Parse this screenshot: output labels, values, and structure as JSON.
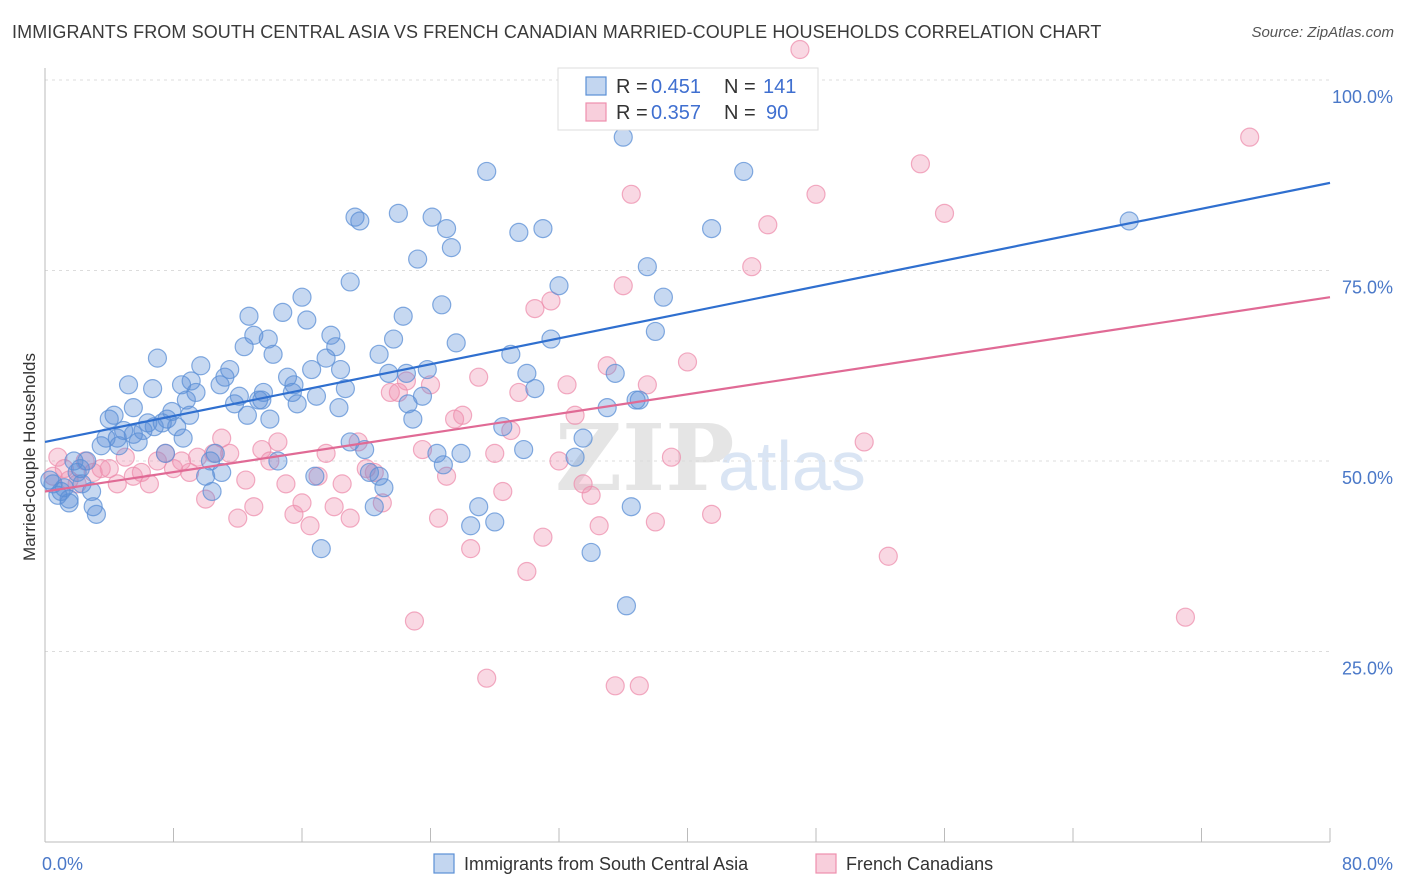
{
  "title": "IMMIGRANTS FROM SOUTH CENTRAL ASIA VS FRENCH CANADIAN MARRIED-COUPLE HOUSEHOLDS CORRELATION CHART",
  "source": "Source: ZipAtlas.com",
  "watermark": {
    "zip": "ZIP",
    "atlas": "atlas"
  },
  "colors": {
    "blue": "#5b8fd6",
    "blue_line": "#2f6fcf",
    "pink": "#ee8fae",
    "pink_line": "#e06a95",
    "tick_text": "#4a78c8"
  },
  "legend": {
    "r_label": "R =",
    "n_label": "N =",
    "rows": [
      {
        "series": "blue",
        "r": "0.451",
        "n": "141"
      },
      {
        "series": "pink",
        "r": "0.357",
        "n": "90"
      }
    ]
  },
  "bottom_legend": [
    {
      "series": "blue",
      "label": "Immigrants from South Central Asia"
    },
    {
      "series": "pink",
      "label": "French Canadians"
    }
  ],
  "chart_data": {
    "type": "scatter",
    "title": "IMMIGRANTS FROM SOUTH CENTRAL ASIA VS FRENCH CANADIAN MARRIED-COUPLE HOUSEHOLDS CORRELATION CHART",
    "xlabel": "",
    "ylabel": "Married-couple Households",
    "xlim": [
      0,
      80
    ],
    "ylim": [
      0,
      102
    ],
    "x_tick_labels": [
      "0.0%",
      "80.0%"
    ],
    "y_ticks": [
      25,
      50,
      75,
      100
    ],
    "y_tick_labels": [
      "25.0%",
      "50.0%",
      "75.0%",
      "100.0%"
    ],
    "grid": "horizontal dashed",
    "legend_position": "top-center",
    "series": [
      {
        "name": "Immigrants from South Central Asia",
        "color": "#5b8fd6",
        "r": 0.451,
        "n": 141,
        "trend": {
          "x": [
            0,
            80
          ],
          "y": [
            52.5,
            86.5
          ]
        },
        "points": [
          [
            0.3,
            47.5
          ],
          [
            0.5,
            47
          ],
          [
            0.8,
            45.5
          ],
          [
            1,
            46
          ],
          [
            1.2,
            46.5
          ],
          [
            1.5,
            44.5
          ],
          [
            1.8,
            50
          ],
          [
            2,
            48.5
          ],
          [
            2.3,
            47
          ],
          [
            2.6,
            50
          ],
          [
            2.9,
            46
          ],
          [
            3.2,
            43
          ],
          [
            3.5,
            52
          ],
          [
            3.8,
            53
          ],
          [
            4,
            55.5
          ],
          [
            4.3,
            56
          ],
          [
            4.6,
            52
          ],
          [
            4.9,
            54
          ],
          [
            5.2,
            60
          ],
          [
            5.5,
            57
          ],
          [
            5.8,
            52.5
          ],
          [
            6.1,
            54
          ],
          [
            6.4,
            55
          ],
          [
            6.7,
            59.5
          ],
          [
            7,
            63.5
          ],
          [
            7.3,
            55
          ],
          [
            7.6,
            55.5
          ],
          [
            7.9,
            56.5
          ],
          [
            8.2,
            54.5
          ],
          [
            8.5,
            60
          ],
          [
            8.8,
            58
          ],
          [
            9.1,
            60.5
          ],
          [
            9.4,
            59
          ],
          [
            9.7,
            62.5
          ],
          [
            10,
            48
          ],
          [
            10.3,
            50
          ],
          [
            10.6,
            51
          ],
          [
            10.9,
            60
          ],
          [
            11.2,
            61
          ],
          [
            11.5,
            62
          ],
          [
            11.8,
            57.5
          ],
          [
            12.1,
            58.5
          ],
          [
            12.4,
            65
          ],
          [
            12.7,
            69
          ],
          [
            13,
            66.5
          ],
          [
            13.3,
            58
          ],
          [
            13.6,
            59
          ],
          [
            13.9,
            66
          ],
          [
            14.2,
            64
          ],
          [
            14.5,
            50
          ],
          [
            14.8,
            69.5
          ],
          [
            15.1,
            61
          ],
          [
            15.4,
            59
          ],
          [
            15.7,
            57.5
          ],
          [
            16,
            71.5
          ],
          [
            16.3,
            68.5
          ],
          [
            16.6,
            62
          ],
          [
            16.9,
            58.5
          ],
          [
            17.2,
            38.5
          ],
          [
            17.5,
            63.5
          ],
          [
            17.8,
            66.5
          ],
          [
            18.1,
            65
          ],
          [
            18.4,
            62
          ],
          [
            18.7,
            59.5
          ],
          [
            19,
            73.5
          ],
          [
            19.3,
            82
          ],
          [
            19.6,
            81.5
          ],
          [
            19.9,
            51.5
          ],
          [
            20.2,
            48.5
          ],
          [
            20.5,
            44
          ],
          [
            20.8,
            64
          ],
          [
            21.1,
            46.5
          ],
          [
            21.4,
            61.5
          ],
          [
            21.7,
            66
          ],
          [
            22,
            82.5
          ],
          [
            22.3,
            69
          ],
          [
            22.6,
            57.5
          ],
          [
            22.9,
            55.5
          ],
          [
            23.2,
            76.5
          ],
          [
            23.5,
            58.5
          ],
          [
            23.8,
            62
          ],
          [
            24.1,
            82
          ],
          [
            24.4,
            51
          ],
          [
            24.7,
            70.5
          ],
          [
            25,
            80.5
          ],
          [
            25.3,
            78
          ],
          [
            25.6,
            65.5
          ],
          [
            25.9,
            51
          ],
          [
            26.5,
            41.5
          ],
          [
            27.5,
            88
          ],
          [
            28,
            42
          ],
          [
            28.5,
            54.5
          ],
          [
            29,
            64
          ],
          [
            29.5,
            80
          ],
          [
            30,
            61.5
          ],
          [
            30.5,
            59.5
          ],
          [
            31,
            80.5
          ],
          [
            31.5,
            66
          ],
          [
            32,
            73
          ],
          [
            33,
            50.5
          ],
          [
            34,
            38
          ],
          [
            35,
            57
          ],
          [
            35.5,
            61.5
          ],
          [
            36,
            92.5
          ],
          [
            36.2,
            31
          ],
          [
            36.5,
            44
          ],
          [
            37,
            58
          ],
          [
            37.5,
            75.5
          ],
          [
            38,
            67
          ],
          [
            38.5,
            71.5
          ],
          [
            41.5,
            80.5
          ],
          [
            43.5,
            88
          ],
          [
            67.5,
            81.5
          ],
          [
            1.5,
            45
          ],
          [
            3,
            44
          ],
          [
            2.2,
            49
          ],
          [
            6.8,
            54.5
          ],
          [
            9,
            56
          ],
          [
            11,
            48.5
          ],
          [
            13.5,
            58
          ],
          [
            15.5,
            60
          ],
          [
            18.3,
            57
          ],
          [
            20.8,
            48
          ],
          [
            22.5,
            61.5
          ],
          [
            24.8,
            49.5
          ],
          [
            27,
            44
          ],
          [
            29.8,
            51.5
          ],
          [
            33.5,
            53
          ],
          [
            36.8,
            58
          ],
          [
            4.5,
            53
          ],
          [
            5.5,
            53.5
          ],
          [
            7.5,
            51
          ],
          [
            8.6,
            53
          ],
          [
            10.4,
            46
          ],
          [
            12.6,
            56
          ],
          [
            14,
            55.5
          ],
          [
            16.8,
            48
          ],
          [
            19,
            52.5
          ]
        ]
      },
      {
        "name": "French Canadians",
        "color": "#ee8fae",
        "r": 0.357,
        "n": 90,
        "trend": {
          "x": [
            0,
            80
          ],
          "y": [
            46,
            71.5
          ]
        },
        "points": [
          [
            0.5,
            48
          ],
          [
            0.8,
            50.5
          ],
          [
            1.2,
            49
          ],
          [
            1.5,
            47.5
          ],
          [
            2,
            47
          ],
          [
            2.5,
            50
          ],
          [
            3,
            48.5
          ],
          [
            3.5,
            49
          ],
          [
            4,
            49
          ],
          [
            4.5,
            47
          ],
          [
            5,
            50.5
          ],
          [
            5.5,
            48
          ],
          [
            6,
            48.5
          ],
          [
            6.5,
            47
          ],
          [
            7,
            50
          ],
          [
            7.5,
            51
          ],
          [
            8,
            49
          ],
          [
            8.5,
            50
          ],
          [
            9,
            48.5
          ],
          [
            9.5,
            50.5
          ],
          [
            10,
            45
          ],
          [
            10.5,
            51
          ],
          [
            11,
            53
          ],
          [
            11.5,
            51
          ],
          [
            12,
            42.5
          ],
          [
            12.5,
            47.5
          ],
          [
            13,
            44
          ],
          [
            13.5,
            51.5
          ],
          [
            14,
            50
          ],
          [
            14.5,
            52.5
          ],
          [
            15,
            47
          ],
          [
            15.5,
            43
          ],
          [
            16,
            44.5
          ],
          [
            16.5,
            41.5
          ],
          [
            17,
            48
          ],
          [
            17.5,
            51
          ],
          [
            18,
            44
          ],
          [
            18.5,
            47
          ],
          [
            19,
            42.5
          ],
          [
            19.5,
            52.5
          ],
          [
            20,
            49
          ],
          [
            20.5,
            48.5
          ],
          [
            21,
            44.5
          ],
          [
            21.5,
            59
          ],
          [
            22,
            59
          ],
          [
            22.5,
            60.5
          ],
          [
            23,
            29
          ],
          [
            23.5,
            51.5
          ],
          [
            24,
            60
          ],
          [
            24.5,
            42.5
          ],
          [
            25,
            48
          ],
          [
            25.5,
            55.5
          ],
          [
            26,
            56
          ],
          [
            26.5,
            38.5
          ],
          [
            27,
            61
          ],
          [
            27.5,
            21.5
          ],
          [
            28,
            51
          ],
          [
            28.5,
            46
          ],
          [
            29,
            54
          ],
          [
            29.5,
            59
          ],
          [
            30,
            35.5
          ],
          [
            30.5,
            70
          ],
          [
            31,
            40
          ],
          [
            31.5,
            71
          ],
          [
            32,
            50
          ],
          [
            32.5,
            60
          ],
          [
            33,
            56
          ],
          [
            33.5,
            47
          ],
          [
            34,
            45.5
          ],
          [
            34.5,
            41.5
          ],
          [
            35,
            62.5
          ],
          [
            35.5,
            20.5
          ],
          [
            36,
            73
          ],
          [
            36.5,
            85
          ],
          [
            37,
            20.5
          ],
          [
            37.5,
            60
          ],
          [
            38,
            42
          ],
          [
            39,
            50.5
          ],
          [
            40,
            63
          ],
          [
            41.5,
            43
          ],
          [
            44,
            75.5
          ],
          [
            45,
            81
          ],
          [
            47,
            104
          ],
          [
            48,
            85
          ],
          [
            51,
            52.5
          ],
          [
            52.5,
            37.5
          ],
          [
            54.5,
            89
          ],
          [
            56,
            82.5
          ],
          [
            71,
            29.5
          ],
          [
            75,
            92.5
          ]
        ]
      }
    ]
  }
}
